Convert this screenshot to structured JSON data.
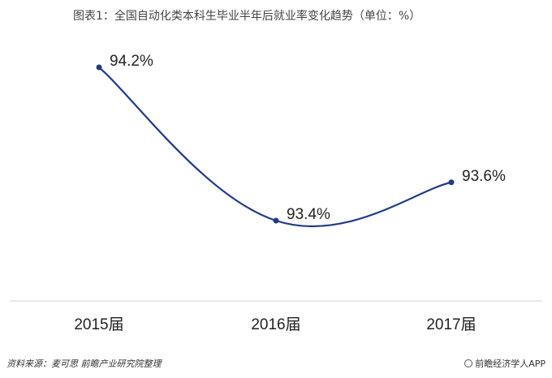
{
  "chart_data": {
    "type": "line",
    "title": "图表1：全国自动化类本科生毕业半年后就业率变化趋势（单位：%）",
    "categories": [
      "2015届",
      "2016届",
      "2017届"
    ],
    "values": [
      94.2,
      93.4,
      93.6
    ],
    "data_labels": [
      "94.2%",
      "93.4%",
      "93.6%"
    ],
    "line_color": "#1f3a8a",
    "grid": false,
    "legend": "none"
  },
  "footer": {
    "source": "资料来源：麦可思 前瞻产业研究院整理",
    "brand": "前瞻经济学人APP"
  }
}
